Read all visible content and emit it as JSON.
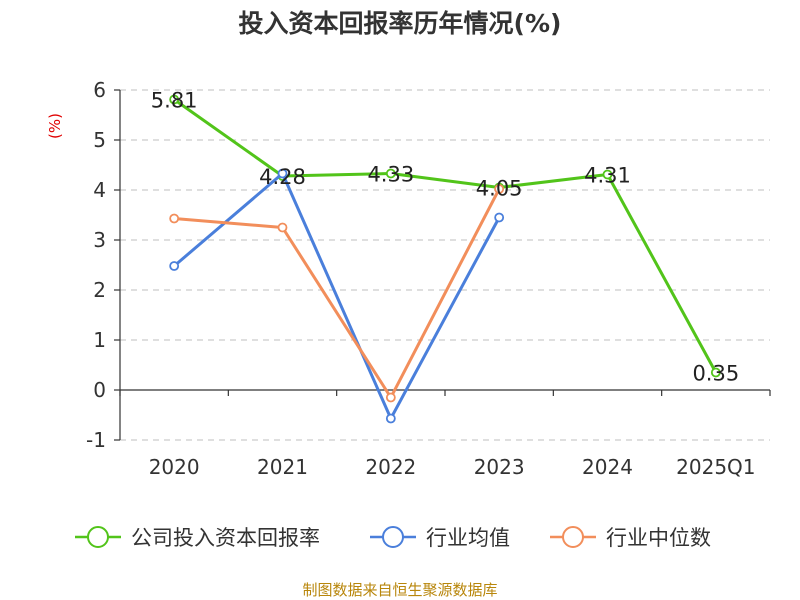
{
  "chart_data": {
    "type": "line",
    "title": "投入资本回报率历年情况(%)",
    "ylabel": "(%)",
    "categories": [
      "2020",
      "2021",
      "2022",
      "2023",
      "2024",
      "2025Q1"
    ],
    "ylim": [
      -1,
      6
    ],
    "yticks": [
      "-1",
      "0",
      "1",
      "2",
      "3",
      "4",
      "5",
      "6"
    ],
    "grid": true,
    "legend_position": "bottom",
    "series": [
      {
        "name": "公司投入资本回报率",
        "color": "#52c41a",
        "values": [
          5.81,
          4.28,
          4.33,
          4.05,
          4.31,
          0.35
        ],
        "labels": [
          "5.81",
          "4.28",
          "4.33",
          "4.05",
          "4.31",
          "0.35"
        ]
      },
      {
        "name": "行业均值",
        "color": "#4a7fdb",
        "values": [
          2.48,
          4.33,
          -0.57,
          3.45,
          null,
          null
        ]
      },
      {
        "name": "行业中位数",
        "color": "#f28e5b",
        "values": [
          3.43,
          3.25,
          -0.15,
          4.02,
          null,
          null
        ]
      }
    ]
  },
  "source": "制图数据来自恒生聚源数据库"
}
